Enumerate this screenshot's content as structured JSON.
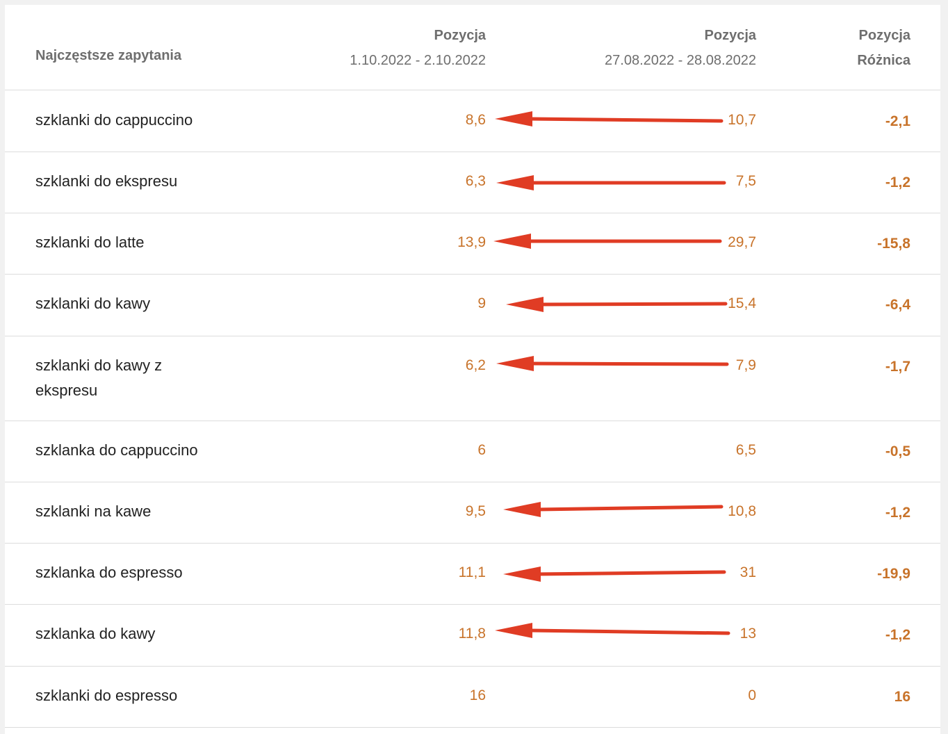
{
  "header": {
    "query": "Najczęstsze zapytania",
    "col1_title": "Pozycja",
    "col1_range": "1.10.2022 - 2.10.2022",
    "col2_title": "Pozycja",
    "col2_range": "27.08.2022 - 28.08.2022",
    "col3_title": "Pozycja",
    "col3_sub": "Różnica"
  },
  "rows": [
    {
      "query": "szklanki do cappuccino",
      "pos_new": "8,6",
      "pos_old": "10,7",
      "diff": "-2,1",
      "arrow": true
    },
    {
      "query": "szklanki do ekspresu",
      "pos_new": "6,3",
      "pos_old": "7,5",
      "diff": "-1,2",
      "arrow": true
    },
    {
      "query": "szklanki do latte",
      "pos_new": "13,9",
      "pos_old": "29,7",
      "diff": "-15,8",
      "arrow": true
    },
    {
      "query": "szklanki do kawy",
      "pos_new": "9",
      "pos_old": "15,4",
      "diff": "-6,4",
      "arrow": true
    },
    {
      "query": "szklanki do kawy z ekspresu",
      "pos_new": "6,2",
      "pos_old": "7,9",
      "diff": "-1,7",
      "arrow": true
    },
    {
      "query": "szklanka do cappuccino",
      "pos_new": "6",
      "pos_old": "6,5",
      "diff": "-0,5",
      "arrow": false
    },
    {
      "query": "szklanki na kawe",
      "pos_new": "9,5",
      "pos_old": "10,8",
      "diff": "-1,2",
      "arrow": true
    },
    {
      "query": "szklanka do espresso",
      "pos_new": "11,1",
      "pos_old": "31",
      "diff": "-19,9",
      "arrow": true
    },
    {
      "query": "szklanka do kawy",
      "pos_new": "11,8",
      "pos_old": "13",
      "diff": "-1,2",
      "arrow": true
    },
    {
      "query": "szklanki do espresso",
      "pos_new": "16",
      "pos_old": "0",
      "diff": "16",
      "arrow": false
    }
  ],
  "colors": {
    "value": "#c8732a",
    "arrow": "#e03c24"
  }
}
